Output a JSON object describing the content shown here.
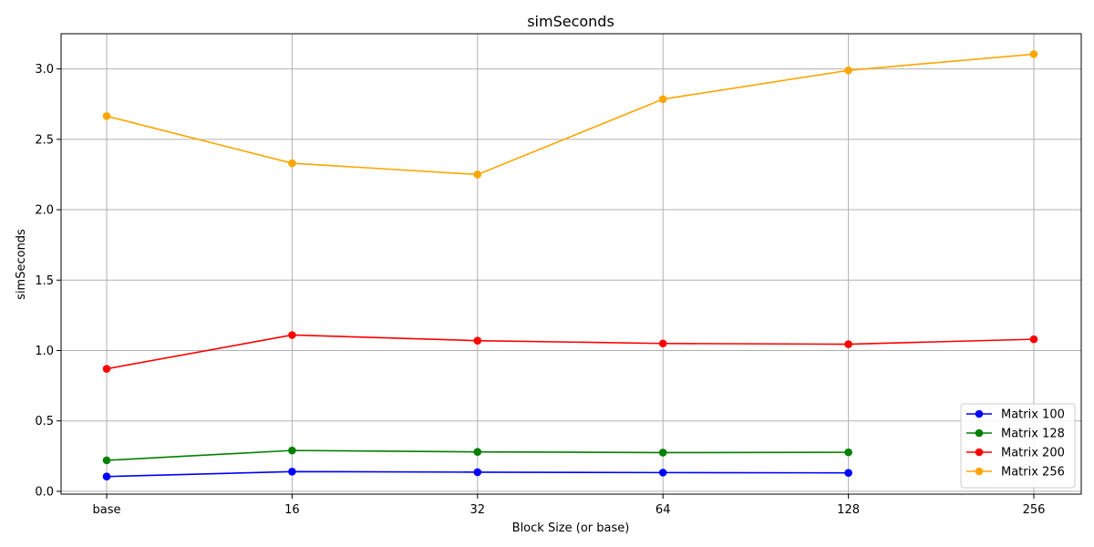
{
  "chart_data": {
    "type": "line",
    "title": "simSeconds",
    "xlabel": "Block Size (or base)",
    "ylabel": "simSeconds",
    "categories": [
      "base",
      "16",
      "32",
      "64",
      "128",
      "256"
    ],
    "ylim": [
      -0.02,
      3.25
    ],
    "yticks": [
      "0.0",
      "0.5",
      "1.0",
      "1.5",
      "2.0",
      "2.5",
      "3.0"
    ],
    "grid": true,
    "legend_position": "bottom-right",
    "series": [
      {
        "name": "Matrix 100",
        "color": "#0000ff",
        "values": [
          0.105,
          0.14,
          0.136,
          0.133,
          0.131,
          null
        ]
      },
      {
        "name": "Matrix 128",
        "color": "#008000",
        "values": [
          0.22,
          0.29,
          0.28,
          0.275,
          0.277,
          null
        ]
      },
      {
        "name": "Matrix 200",
        "color": "#ff0000",
        "values": [
          0.87,
          1.11,
          1.07,
          1.05,
          1.045,
          1.08
        ]
      },
      {
        "name": "Matrix 256",
        "color": "#ffa500",
        "values": [
          2.665,
          2.33,
          2.25,
          2.785,
          2.99,
          3.105
        ]
      }
    ]
  }
}
